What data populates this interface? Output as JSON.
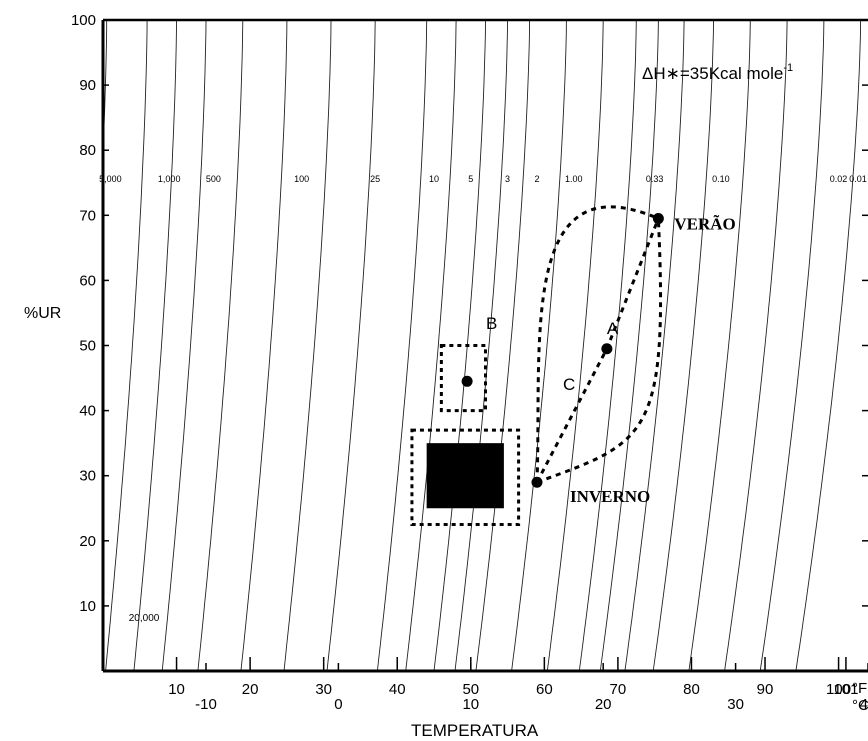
{
  "chart_data": {
    "type": "line",
    "title": "ΔH∗=35Kcal mole",
    "title_superscript": "-1",
    "xlabel": "TEMPERATURA",
    "ylabel": "%UR",
    "x_unit_f": "°F",
    "x_unit_c": "°C",
    "xlim_f": [
      0,
      104
    ],
    "ylim": [
      0,
      100
    ],
    "y_ticks": [
      "100",
      "90",
      "80",
      "70",
      "60",
      "50",
      "40",
      "30",
      "20",
      "10"
    ],
    "x_ticks_f": [
      "10",
      "20",
      "30",
      "40",
      "50",
      "60",
      "70",
      "80",
      "90",
      "100",
      "101"
    ],
    "x_ticks_c": [
      "-10",
      "0",
      "10",
      "20",
      "30",
      "40"
    ],
    "isoperm_labels": [
      "5,000",
      "1,000",
      "500",
      "100",
      "25",
      "10",
      "5",
      "3",
      "2",
      "1.00",
      "0.33",
      "0.10",
      "0.02",
      "0.01"
    ],
    "bottom_isoperm_label": "20,000",
    "points": [
      {
        "name": "VERÃO",
        "x_f": 75.5,
        "y": 69.5
      },
      {
        "name": "INVERNO",
        "x_f": 59,
        "y": 29
      },
      {
        "name": "A",
        "x_f": 68.5,
        "y": 49.5
      },
      {
        "name": "",
        "x_f": 49.5,
        "y": 44.5
      }
    ],
    "path_labels": [
      "A",
      "B",
      "C"
    ],
    "zones": {
      "solid_square": {
        "x_f": [
          44,
          54.5
        ],
        "y": [
          25,
          35
        ]
      },
      "dotted_outer": {
        "x_f": [
          42,
          56.5
        ],
        "y": [
          22.5,
          37
        ]
      },
      "dotted_small": {
        "x_f": [
          46,
          52
        ],
        "y": [
          40,
          50
        ]
      }
    }
  }
}
